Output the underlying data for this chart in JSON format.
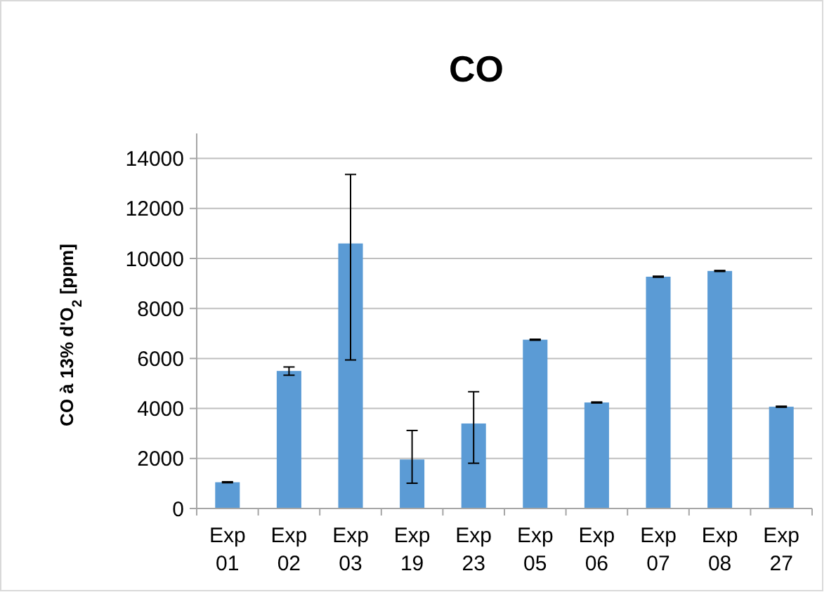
{
  "chart_data": {
    "type": "bar",
    "title": "CO",
    "ylabel": "CO à 13% d'O$_{2}$ [ppm]",
    "categories": [
      "Exp 01",
      "Exp 02",
      "Exp 03",
      "Exp 19",
      "Exp 23",
      "Exp 05",
      "Exp 06",
      "Exp 07",
      "Exp 08",
      "Exp 27"
    ],
    "values": [
      1050,
      5500,
      10600,
      1960,
      3400,
      6750,
      4240,
      9270,
      9500,
      4070
    ],
    "errors": [
      20,
      [
        5330,
        5660
      ],
      [
        5940,
        13360
      ],
      [
        1010,
        3120
      ],
      [
        1810,
        4670
      ],
      20,
      20,
      20,
      20,
      20
    ],
    "color": "#5b9bd5",
    "ylim": [
      0,
      15000
    ],
    "yticks": [
      0,
      2000,
      4000,
      6000,
      8000,
      10000,
      12000,
      14000
    ],
    "grid": "y"
  }
}
